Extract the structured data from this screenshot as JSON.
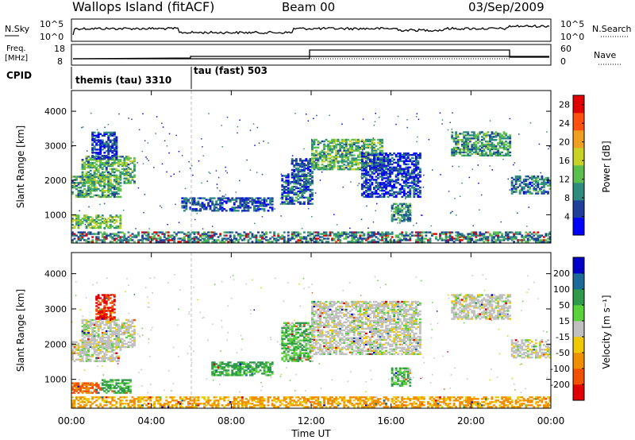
{
  "header": {
    "station": "Wallops Island (fitACF)",
    "beam": "Beam 00",
    "date": "03/Sep/2009"
  },
  "strips": {
    "nsky_label": "N.Sky",
    "nsearch_label": "N.Search",
    "nsky_ticks": [
      "10^5",
      "10^0"
    ],
    "nsearch_ticks": [
      "10^5",
      "10^0"
    ],
    "freq_label_1": "Freq.",
    "freq_label_2": "[MHz]",
    "freq_ticks": [
      "18",
      "8"
    ],
    "nave_label": "Nave",
    "nave_ticks": [
      "60",
      "0"
    ],
    "cpid_label": "CPID",
    "cpid_segments": [
      {
        "text": "themis (tau) 3310",
        "start_hour": 0,
        "end_hour": 6
      },
      {
        "text": "tau (fast) 503",
        "start_hour": 6,
        "end_hour": 24
      }
    ]
  },
  "chart_data": [
    {
      "type": "heatmap",
      "name": "power",
      "ylabel": "Slant Range [km]",
      "xlabel": "",
      "xlim": [
        0,
        24
      ],
      "ylim": [
        180,
        4600
      ],
      "yticks": [
        1000,
        2000,
        3000,
        4000
      ],
      "xticks_hours": [
        0,
        4,
        8,
        12,
        16,
        20,
        24
      ],
      "xtick_labels": [
        "00:00",
        "04:00",
        "08:00",
        "12:00",
        "16:00",
        "20:00",
        "00:00"
      ],
      "colorbar": {
        "label": "Power [dB]",
        "ticks": [
          4,
          8,
          12,
          16,
          20,
          24,
          28
        ],
        "range": [
          0,
          30
        ],
        "colors": [
          "#0000ff",
          "#1e3f9a",
          "#2f8a80",
          "#5bbf4c",
          "#c8d224",
          "#f0a020",
          "#ff5010",
          "#e00000"
        ]
      },
      "regions": [
        {
          "t0": 0.0,
          "t1": 2.5,
          "r0": 1500,
          "r1": 2100,
          "level": 11
        },
        {
          "t0": 0.5,
          "t1": 3.2,
          "r0": 1900,
          "r1": 2700,
          "level": 12
        },
        {
          "t0": 1.0,
          "t1": 2.3,
          "r0": 2600,
          "r1": 3400,
          "level": 5
        },
        {
          "t0": 0.0,
          "t1": 2.5,
          "r0": 600,
          "r1": 1000,
          "level": 13
        },
        {
          "t0": 5.5,
          "t1": 10.0,
          "r0": 1100,
          "r1": 1500,
          "level": 6
        },
        {
          "t0": 10.5,
          "t1": 12.0,
          "r0": 1300,
          "r1": 2200,
          "level": 7
        },
        {
          "t0": 11.0,
          "t1": 12.0,
          "r0": 2100,
          "r1": 2600,
          "level": 6
        },
        {
          "t0": 12.0,
          "t1": 15.5,
          "r0": 2300,
          "r1": 3200,
          "level": 12
        },
        {
          "t0": 14.5,
          "t1": 17.5,
          "r0": 1500,
          "r1": 2800,
          "level": 5
        },
        {
          "t0": 16.0,
          "t1": 17.0,
          "r0": 800,
          "r1": 1300,
          "level": 10
        },
        {
          "t0": 19.0,
          "t1": 22.0,
          "r0": 2700,
          "r1": 3400,
          "level": 11
        },
        {
          "t0": 22.0,
          "t1": 24.0,
          "r0": 1600,
          "r1": 2100,
          "level": 8
        },
        {
          "t0": 0.0,
          "t1": 24.0,
          "r0": 200,
          "r1": 500,
          "level": 9
        }
      ]
    },
    {
      "type": "heatmap",
      "name": "velocity",
      "ylabel": "Slant Range [km]",
      "xlabel": "Time UT",
      "xlim": [
        0,
        24
      ],
      "ylim": [
        180,
        4600
      ],
      "yticks": [
        1000,
        2000,
        3000,
        4000
      ],
      "xticks_hours": [
        0,
        4,
        8,
        12,
        16,
        20,
        24
      ],
      "xtick_labels": [
        "00:00",
        "04:00",
        "08:00",
        "12:00",
        "16:00",
        "20:00",
        "00:00"
      ],
      "colorbar": {
        "label": "Velocity [m s⁻¹]",
        "ticks": [
          "200",
          "100",
          "50",
          "15",
          "-15",
          "-50",
          "-100",
          "-200"
        ],
        "colors": [
          "#0000c8",
          "#1a6a9a",
          "#2f9a4a",
          "#5ad23a",
          "#c0c0c0",
          "#f0c800",
          "#f09000",
          "#f05000",
          "#e00000"
        ]
      },
      "regions": [
        {
          "t0": 0.0,
          "t1": 2.5,
          "r0": 1500,
          "r1": 2100,
          "vel": 0
        },
        {
          "t0": 0.5,
          "t1": 3.2,
          "r0": 1900,
          "r1": 2700,
          "vel": 0
        },
        {
          "t0": 1.2,
          "t1": 2.2,
          "r0": 2700,
          "r1": 3400,
          "vel": -150
        },
        {
          "t0": 0.0,
          "t1": 1.5,
          "r0": 600,
          "r1": 900,
          "vel": -80
        },
        {
          "t0": 1.5,
          "t1": 3.0,
          "r0": 600,
          "r1": 1000,
          "vel": 40
        },
        {
          "t0": 7.0,
          "t1": 10.0,
          "r0": 1100,
          "r1": 1500,
          "vel": 40
        },
        {
          "t0": 10.5,
          "t1": 12.0,
          "r0": 1500,
          "r1": 2600,
          "vel": 30
        },
        {
          "t0": 12.0,
          "t1": 17.5,
          "r0": 1700,
          "r1": 3200,
          "vel": 0
        },
        {
          "t0": 16.0,
          "t1": 17.0,
          "r0": 800,
          "r1": 1300,
          "vel": 30
        },
        {
          "t0": 19.0,
          "t1": 22.0,
          "r0": 2700,
          "r1": 3400,
          "vel": 0
        },
        {
          "t0": 22.0,
          "t1": 24.0,
          "r0": 1600,
          "r1": 2100,
          "vel": 0
        },
        {
          "t0": 0.0,
          "t1": 24.0,
          "r0": 200,
          "r1": 500,
          "vel": -40
        }
      ]
    }
  ]
}
